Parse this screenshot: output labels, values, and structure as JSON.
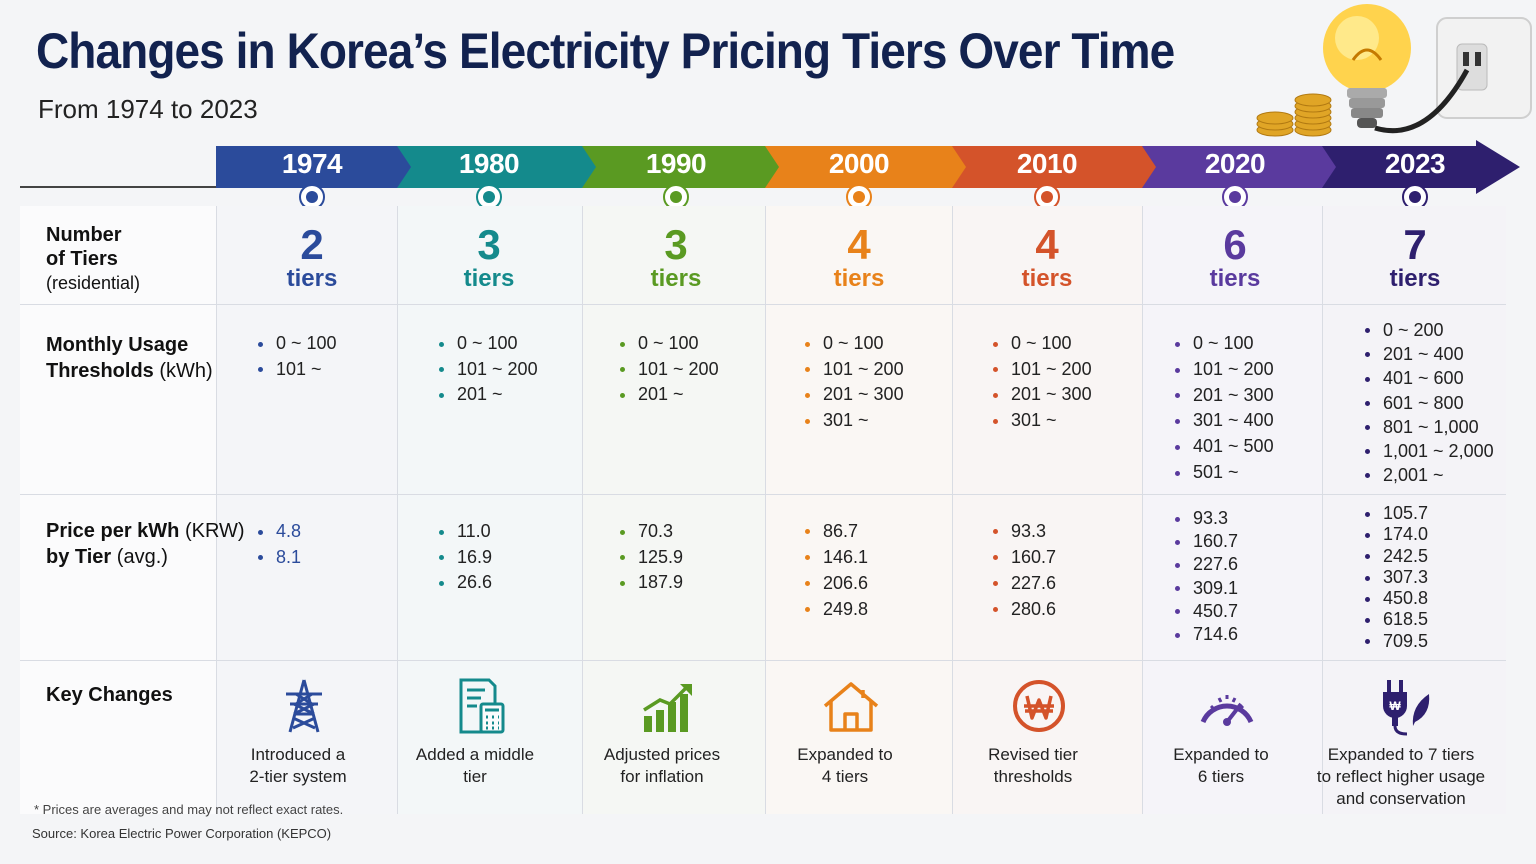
{
  "title": "Changes in Korea’s Electricity Pricing Tiers Over Time",
  "subtitle": "From 1974 to 2023",
  "row_labels": {
    "tiers_title": "Number",
    "tiers_title2": "of Tiers",
    "tiers_sub": "(residential)",
    "usage_title": "Monthly Usage",
    "usage_title2": "Thresholds",
    "usage_unit": "(kWh)",
    "price_title": "Price per kWh",
    "price_unit": "(KRW)",
    "price_title2": "by Tier",
    "price_sub": "(avg.)",
    "changes_title": "Key Changes"
  },
  "tiers_word": "tiers",
  "periods": [
    {
      "year": "1974",
      "color": "#2b4b9b",
      "tiers": "2",
      "thresholds": [
        "0 ~ 100",
        "101 ~"
      ],
      "prices": [
        "4.8",
        "8.1"
      ],
      "icon": "power-tower-icon",
      "change_line1": "Introduced a",
      "change_line2": "2-tier system",
      "change_line3": ""
    },
    {
      "year": "1980",
      "color": "#148a8c",
      "tiers": "3",
      "thresholds": [
        "0 ~ 100",
        "101 ~ 200",
        "201 ~"
      ],
      "prices": [
        "11.0",
        "16.9",
        "26.6"
      ],
      "icon": "bill-calculator-icon",
      "change_line1": "Added a middle",
      "change_line2": "tier",
      "change_line3": ""
    },
    {
      "year": "1990",
      "color": "#5a9a22",
      "tiers": "3",
      "thresholds": [
        "0 ~ 100",
        "101 ~ 200",
        "201 ~"
      ],
      "prices": [
        "70.3",
        "125.9",
        "187.9"
      ],
      "icon": "rising-bar-chart-icon",
      "change_line1": "Adjusted prices",
      "change_line2": "for inflation",
      "change_line3": ""
    },
    {
      "year": "2000",
      "color": "#e8821a",
      "tiers": "4",
      "thresholds": [
        "0 ~ 100",
        "101 ~ 200",
        "201 ~ 300",
        "301 ~"
      ],
      "prices": [
        "86.7",
        "146.1",
        "206.6",
        "249.8"
      ],
      "icon": "house-icon",
      "change_line1": "Expanded to",
      "change_line2": "4 tiers",
      "change_line3": ""
    },
    {
      "year": "2010",
      "color": "#d4532a",
      "tiers": "4",
      "thresholds": [
        "0 ~ 100",
        "101 ~ 200",
        "201 ~ 300",
        "301 ~"
      ],
      "prices": [
        "93.3",
        "160.7",
        "227.6",
        "280.6"
      ],
      "icon": "won-coin-icon",
      "change_line1": "Revised tier",
      "change_line2": "thresholds",
      "change_line3": ""
    },
    {
      "year": "2020",
      "color": "#5a3a9e",
      "tiers": "6",
      "thresholds": [
        "0 ~ 100",
        "101 ~ 200",
        "201 ~ 300",
        "301 ~ 400",
        "401 ~ 500",
        "501 ~"
      ],
      "prices": [
        "93.3",
        "160.7",
        "227.6",
        "309.1",
        "450.7",
        "714.6"
      ],
      "icon": "gauge-icon",
      "change_line1": "Expanded to",
      "change_line2": "6 tiers",
      "change_line3": ""
    },
    {
      "year": "2023",
      "color": "#2e1f6e",
      "tiers": "7",
      "thresholds": [
        "0 ~ 200",
        "201 ~ 400",
        "401 ~ 600",
        "601 ~ 800",
        "801 ~ 1,000",
        "1,001 ~ 2,000",
        "2,001 ~"
      ],
      "prices": [
        "105.7",
        "174.0",
        "242.5",
        "307.3",
        "450.8",
        "618.5",
        "709.5"
      ],
      "icon": "plug-leaf-icon",
      "change_line1": "Expanded to 7 tiers",
      "change_line2": "to reflect higher usage",
      "change_line3": "and conservation"
    }
  ],
  "footnote": "* Prices are averages and may not reflect exact rates.",
  "source": "Source: Korea Electric Power Corporation (KEPCO)"
}
